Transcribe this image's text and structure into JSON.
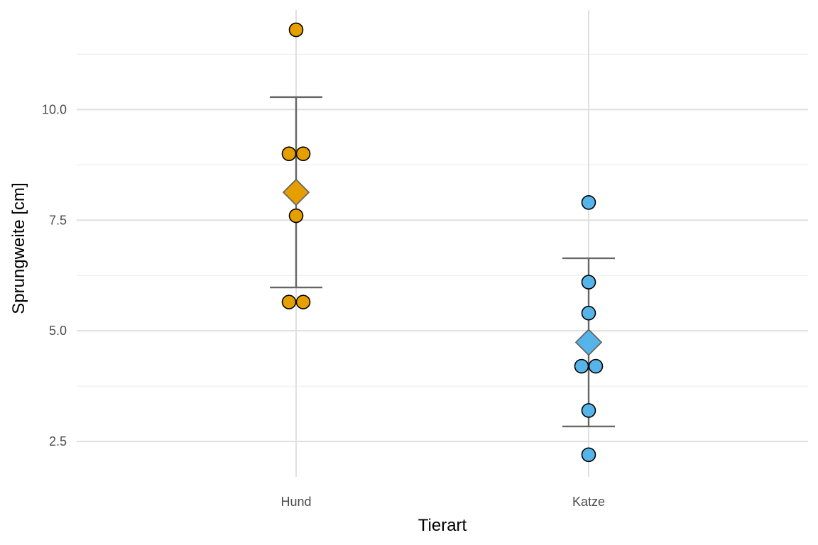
{
  "chart_data": {
    "type": "scatter",
    "xlabel": "Tierart",
    "ylabel": "Sprungweite [cm]",
    "categories": [
      "Hund",
      "Katze"
    ],
    "ylim": [
      1.7,
      12.25
    ],
    "yticks": [
      2.5,
      5.0,
      7.5,
      10.0
    ],
    "ytick_labels": [
      "2.5",
      "5.0",
      "7.5",
      "10.0"
    ],
    "grid": true,
    "legend": "none",
    "colors": {
      "Hund": "#E69F00",
      "Katze": "#56B4E9"
    },
    "points": [
      {
        "category": "Hund",
        "y": 11.8,
        "offset": 0
      },
      {
        "category": "Hund",
        "y": 9.0,
        "offset": -1
      },
      {
        "category": "Hund",
        "y": 9.0,
        "offset": 1
      },
      {
        "category": "Hund",
        "y": 7.6,
        "offset": 0
      },
      {
        "category": "Hund",
        "y": 5.65,
        "offset": -1
      },
      {
        "category": "Hund",
        "y": 5.65,
        "offset": 1
      },
      {
        "category": "Katze",
        "y": 7.9,
        "offset": 0
      },
      {
        "category": "Katze",
        "y": 6.1,
        "offset": 0
      },
      {
        "category": "Katze",
        "y": 5.4,
        "offset": 0
      },
      {
        "category": "Katze",
        "y": 4.2,
        "offset": -1
      },
      {
        "category": "Katze",
        "y": 4.2,
        "offset": 1
      },
      {
        "category": "Katze",
        "y": 3.2,
        "offset": 0
      },
      {
        "category": "Katze",
        "y": 2.2,
        "offset": 0
      }
    ],
    "summary": [
      {
        "category": "Hund",
        "mean": 8.13,
        "lower": 5.98,
        "upper": 10.28
      },
      {
        "category": "Katze",
        "mean": 4.74,
        "lower": 2.84,
        "upper": 6.64
      }
    ]
  }
}
